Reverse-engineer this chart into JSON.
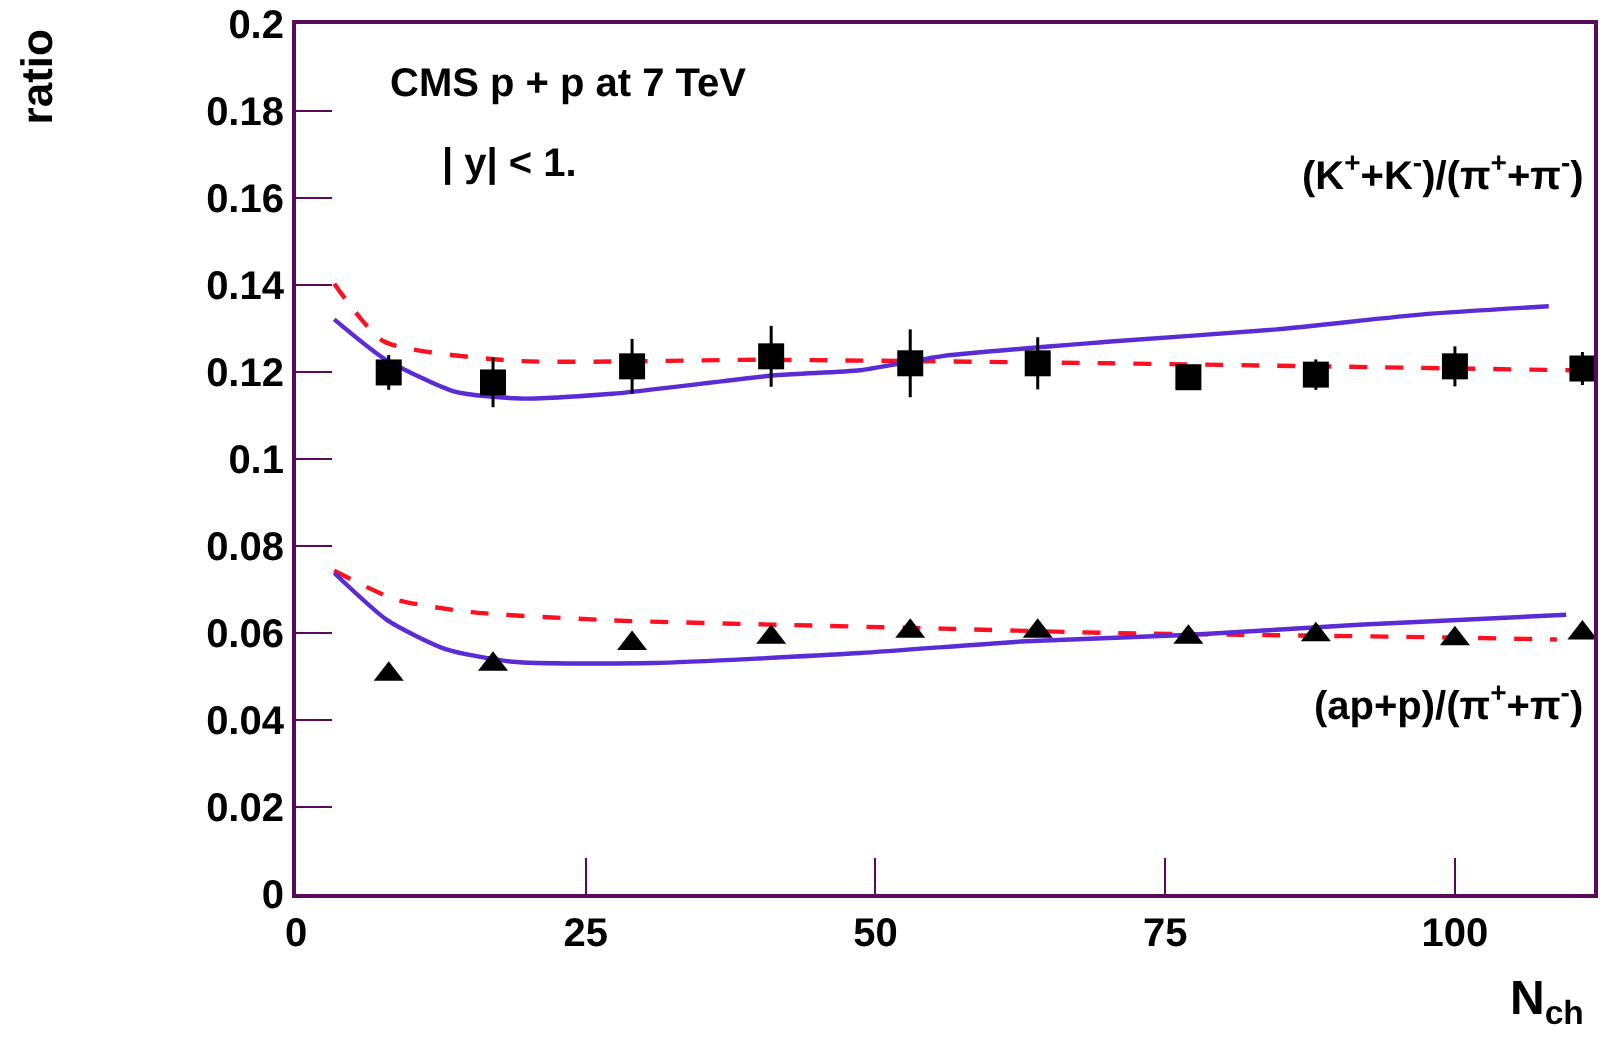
{
  "chart_data": {
    "type": "scatter",
    "xlabel": "N$_{ch}$",
    "ylabel": "ratio",
    "xlim": [
      0,
      112
    ],
    "xticks": [
      0,
      25,
      50,
      75,
      100
    ],
    "ylim": [
      0,
      0.2
    ],
    "yticks": [
      0,
      0.02,
      0.04,
      0.06,
      0.08,
      0.1,
      0.12,
      0.14,
      0.16,
      0.18,
      0.2
    ],
    "annotations": [
      "CMS p + p at 7 TeV",
      "| y| < 1.",
      "(K$^{+}$+K$^{-}$)/(π$^{+}$+π$^{-}$)",
      "(ap+p)/(π$^{+}$+π$^{-}$)"
    ],
    "series": [
      {
        "type": "line",
        "color": "#ff1020",
        "line_style": "dashed",
        "marker": "none",
        "x": [
          3.3,
          7.6,
          18.7,
          40,
          70.3,
          110
        ],
        "values": [
          0.1403,
          0.127,
          0.1226,
          0.1228,
          0.122,
          0.1204
        ]
      },
      {
        "type": "line",
        "color": "#5b2bd6",
        "line_style": "solid",
        "marker": "none",
        "x": [
          3.3,
          7.6,
          13.7,
          19.4,
          27.3,
          41.6,
          48.7,
          55.9,
          70.3,
          84.6,
          97.4,
          108.1
        ],
        "values": [
          0.1321,
          0.1231,
          0.1155,
          0.1139,
          0.115,
          0.1193,
          0.1204,
          0.1237,
          0.127,
          0.1298,
          0.1333,
          0.1351
        ]
      },
      {
        "type": "line",
        "color": "#ff1020",
        "line_style": "dashed",
        "marker": "none",
        "x": [
          3.3,
          8.6,
          15.1,
          27.3,
          41.6,
          55.9,
          70.3,
          84.6,
          98.8,
          108.8
        ],
        "values": [
          0.0743,
          0.0677,
          0.0648,
          0.0629,
          0.0619,
          0.061,
          0.06,
          0.0595,
          0.059,
          0.0585
        ]
      },
      {
        "type": "line",
        "color": "#5b2bd6",
        "line_style": "solid",
        "marker": "none",
        "x": [
          3.3,
          7.9,
          12.9,
          18.7,
          30.8,
          48.7,
          63,
          77.3,
          91.7,
          109.6
        ],
        "values": [
          0.0738,
          0.0629,
          0.0563,
          0.0534,
          0.0531,
          0.0554,
          0.0581,
          0.0596,
          0.0619,
          0.0642
        ]
      },
      {
        "color": "#000000",
        "marker": "square",
        "x": [
          8,
          17,
          29,
          41,
          53,
          64,
          77,
          88,
          100,
          111
        ],
        "values": [
          0.1199,
          0.1176,
          0.1213,
          0.1236,
          0.122,
          0.122,
          0.1188,
          0.1194,
          0.1213,
          0.1208
        ],
        "errors": [
          0.004,
          0.0057,
          0.0063,
          0.007,
          0.0078,
          0.006,
          0.002,
          0.0035,
          0.0046,
          0.0038
        ]
      },
      {
        "color": "#000000",
        "marker": "triangle",
        "x": [
          8,
          17,
          29,
          41,
          53,
          64,
          77,
          88,
          100,
          111
        ],
        "values": [
          0.0505,
          0.0528,
          0.0576,
          0.059,
          0.0604,
          0.0604,
          0.059,
          0.0596,
          0.0587,
          0.06
        ]
      }
    ]
  }
}
